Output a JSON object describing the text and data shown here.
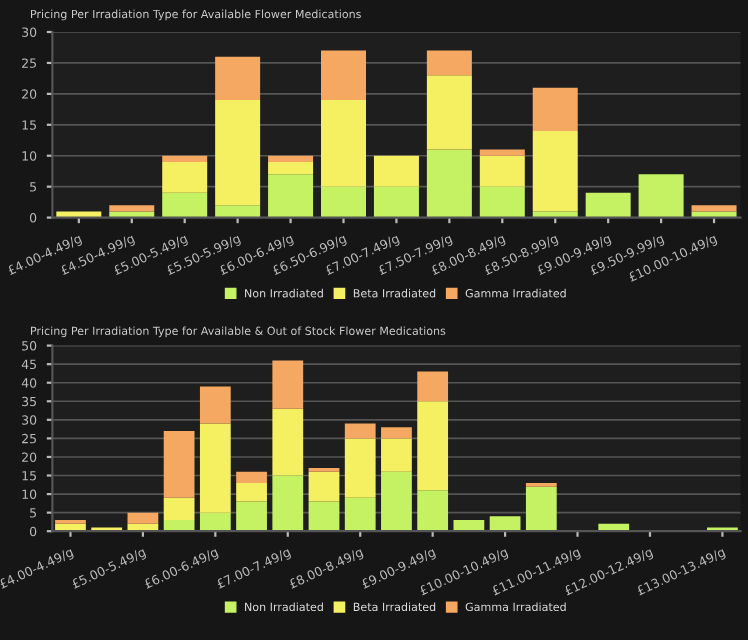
{
  "chart_data": [
    {
      "type": "bar",
      "title": "Pricing Per Irradiation Type for Available Flower Medications",
      "stacked": true,
      "categories": [
        "£4.00-4.49/g",
        "£4.50-4.99/g",
        "£5.00-5.49/g",
        "£5.50-5.99/g",
        "£6.00-6.49/g",
        "£6.50-6.99/g",
        "£7.00-7.49/g",
        "£7.50-7.99/g",
        "£8.00-8.49/g",
        "£8.50-8.99/g",
        "£9.00-9.49/g",
        "£9.50-9.99/g",
        "£10.00-10.49/g"
      ],
      "series": [
        {
          "name": "Non Irradiated",
          "color": "#c5f263",
          "values": [
            0,
            1,
            4,
            2,
            7,
            5,
            5,
            11,
            5,
            1,
            4,
            7,
            1
          ]
        },
        {
          "name": "Beta Irradiated",
          "color": "#f5f062",
          "values": [
            1,
            0,
            5,
            17,
            2,
            14,
            5,
            12,
            5,
            13,
            0,
            0,
            0
          ]
        },
        {
          "name": "Gamma Irradiated",
          "color": "#f4a862",
          "values": [
            0,
            1,
            1,
            7,
            1,
            8,
            0,
            4,
            1,
            7,
            0,
            0,
            1
          ]
        }
      ],
      "ylim": [
        0,
        30
      ],
      "yticks": [
        0,
        5,
        10,
        15,
        20,
        25,
        30
      ],
      "grid": "y",
      "legend": "bottom"
    },
    {
      "type": "bar",
      "title": "Pricing Per Irradiation Type for Available & Out of Stock Flower Medications",
      "stacked": true,
      "categories": [
        "£4.00-4.49/g",
        null,
        "£5.00-5.49/g",
        null,
        "£6.00-6.49/g",
        null,
        "£7.00-7.49/g",
        null,
        "£8.00-8.49/g",
        null,
        "£9.00-9.49/g",
        null,
        "£10.00-10.49/g",
        null,
        "£11.00-11.49/g",
        null,
        "£12.00-12.49/g",
        null,
        "£13.00-13.49/g"
      ],
      "series": [
        {
          "name": "Non Irradiated",
          "color": "#c5f263",
          "values": [
            0,
            0,
            0,
            3,
            5,
            8,
            15,
            8,
            9,
            16,
            11,
            3,
            4,
            12,
            0,
            2,
            0,
            0,
            1
          ]
        },
        {
          "name": "Beta Irradiated",
          "color": "#f5f062",
          "values": [
            2,
            1,
            2,
            6,
            24,
            5,
            18,
            8,
            16,
            9,
            24,
            0,
            0,
            0,
            0,
            0,
            0,
            0,
            0
          ]
        },
        {
          "name": "Gamma Irradiated",
          "color": "#f4a862",
          "values": [
            1,
            0,
            3,
            18,
            10,
            3,
            13,
            1,
            4,
            3,
            8,
            0,
            0,
            1,
            0,
            0,
            0,
            0,
            0
          ]
        }
      ],
      "ylim": [
        0,
        50
      ],
      "yticks": [
        0,
        5,
        10,
        15,
        20,
        25,
        30,
        35,
        40,
        45,
        50
      ],
      "grid": "y",
      "legend": "bottom"
    }
  ]
}
